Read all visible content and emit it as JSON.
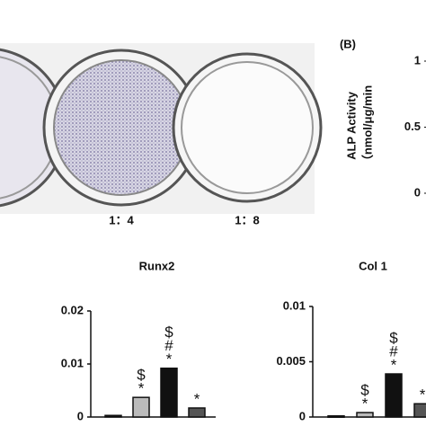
{
  "wells": {
    "labels": [
      "1：4",
      "1：8"
    ]
  },
  "chart_data": [
    {
      "type": "bar",
      "panel_label": "(B)",
      "ylabel": [
        "ALP Activity",
        "（nmol/μg/min"
      ],
      "ylim": [
        0,
        1
      ],
      "yticks": [
        0,
        0.5,
        1
      ]
    },
    {
      "type": "bar",
      "title": "Runx2",
      "categories": [
        null,
        null,
        null,
        null
      ],
      "values": [
        0.0003,
        0.0037,
        0.0092,
        0.0017
      ],
      "colors": [
        "#111111",
        "#bbbbbb",
        "#111111",
        "#555555"
      ],
      "annotations": [
        [],
        [
          "$",
          "*"
        ],
        [
          "$",
          "#",
          "*"
        ],
        [
          "*"
        ]
      ],
      "ylim": [
        0,
        0.02
      ],
      "yticks": [
        0,
        0.01,
        0.02
      ]
    },
    {
      "type": "bar",
      "title": "Col 1",
      "categories": [
        null,
        null,
        null,
        null
      ],
      "values": [
        0.0001,
        0.0004,
        0.0039,
        0.0012
      ],
      "colors": [
        "#111111",
        "#bbbbbb",
        "#111111",
        "#555555"
      ],
      "annotations": [
        [],
        [
          "$",
          "*"
        ],
        [
          "$",
          "#",
          "*"
        ],
        [
          "*"
        ]
      ],
      "ylim": [
        0,
        0.01
      ],
      "yticks": [
        0,
        0.005,
        0.01
      ]
    }
  ]
}
